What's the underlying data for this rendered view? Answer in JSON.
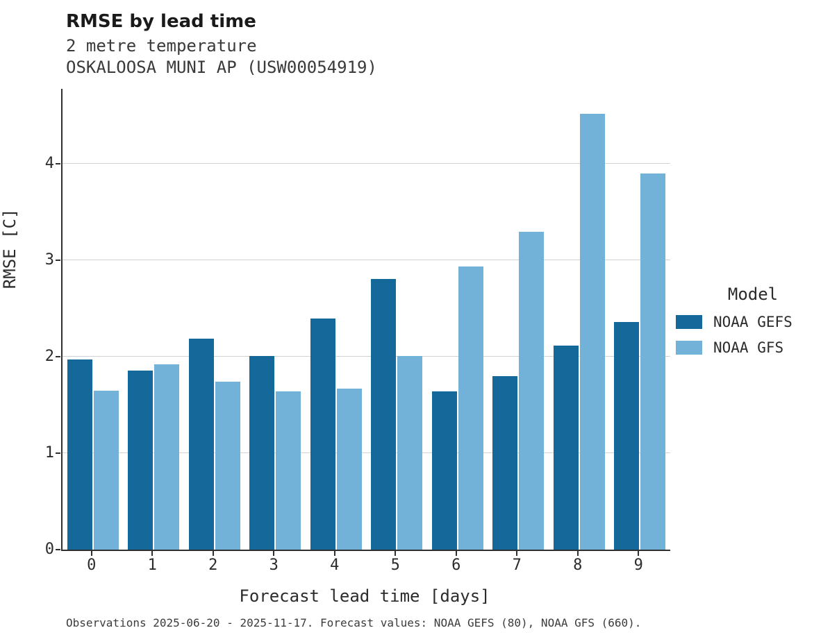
{
  "header": {
    "title": "RMSE by lead time",
    "subtitle_variable": "2 metre temperature",
    "subtitle_station": "OSKALOOSA MUNI AP (USW00054919)"
  },
  "chart_data": {
    "type": "bar",
    "title": "RMSE by lead time",
    "subtitle": [
      "2 metre temperature",
      "OSKALOOSA MUNI AP (USW00054919)"
    ],
    "categories": [
      "0",
      "1",
      "2",
      "3",
      "4",
      "5",
      "6",
      "7",
      "8",
      "9"
    ],
    "series": [
      {
        "name": "NOAA GEFS",
        "color": "#15689a",
        "values": [
          1.97,
          1.86,
          2.19,
          2.01,
          2.4,
          2.81,
          1.64,
          1.8,
          2.12,
          2.36
        ]
      },
      {
        "name": "NOAA GFS",
        "color": "#72b2d8",
        "values": [
          1.65,
          1.92,
          1.74,
          1.64,
          1.67,
          2.01,
          2.94,
          3.3,
          4.52,
          3.9
        ]
      }
    ],
    "xlabel": "Forecast lead time [days]",
    "ylabel": "RMSE [C]",
    "ylim": [
      0,
      4.78
    ],
    "yticks": [
      0,
      1,
      2,
      3,
      4
    ],
    "grid": true,
    "legend_title": "Model",
    "legend_position": "right"
  },
  "footer": {
    "caption": "Observations 2025-06-20 - 2025-11-17. Forecast values: NOAA GEFS (80), NOAA GFS (660)."
  }
}
